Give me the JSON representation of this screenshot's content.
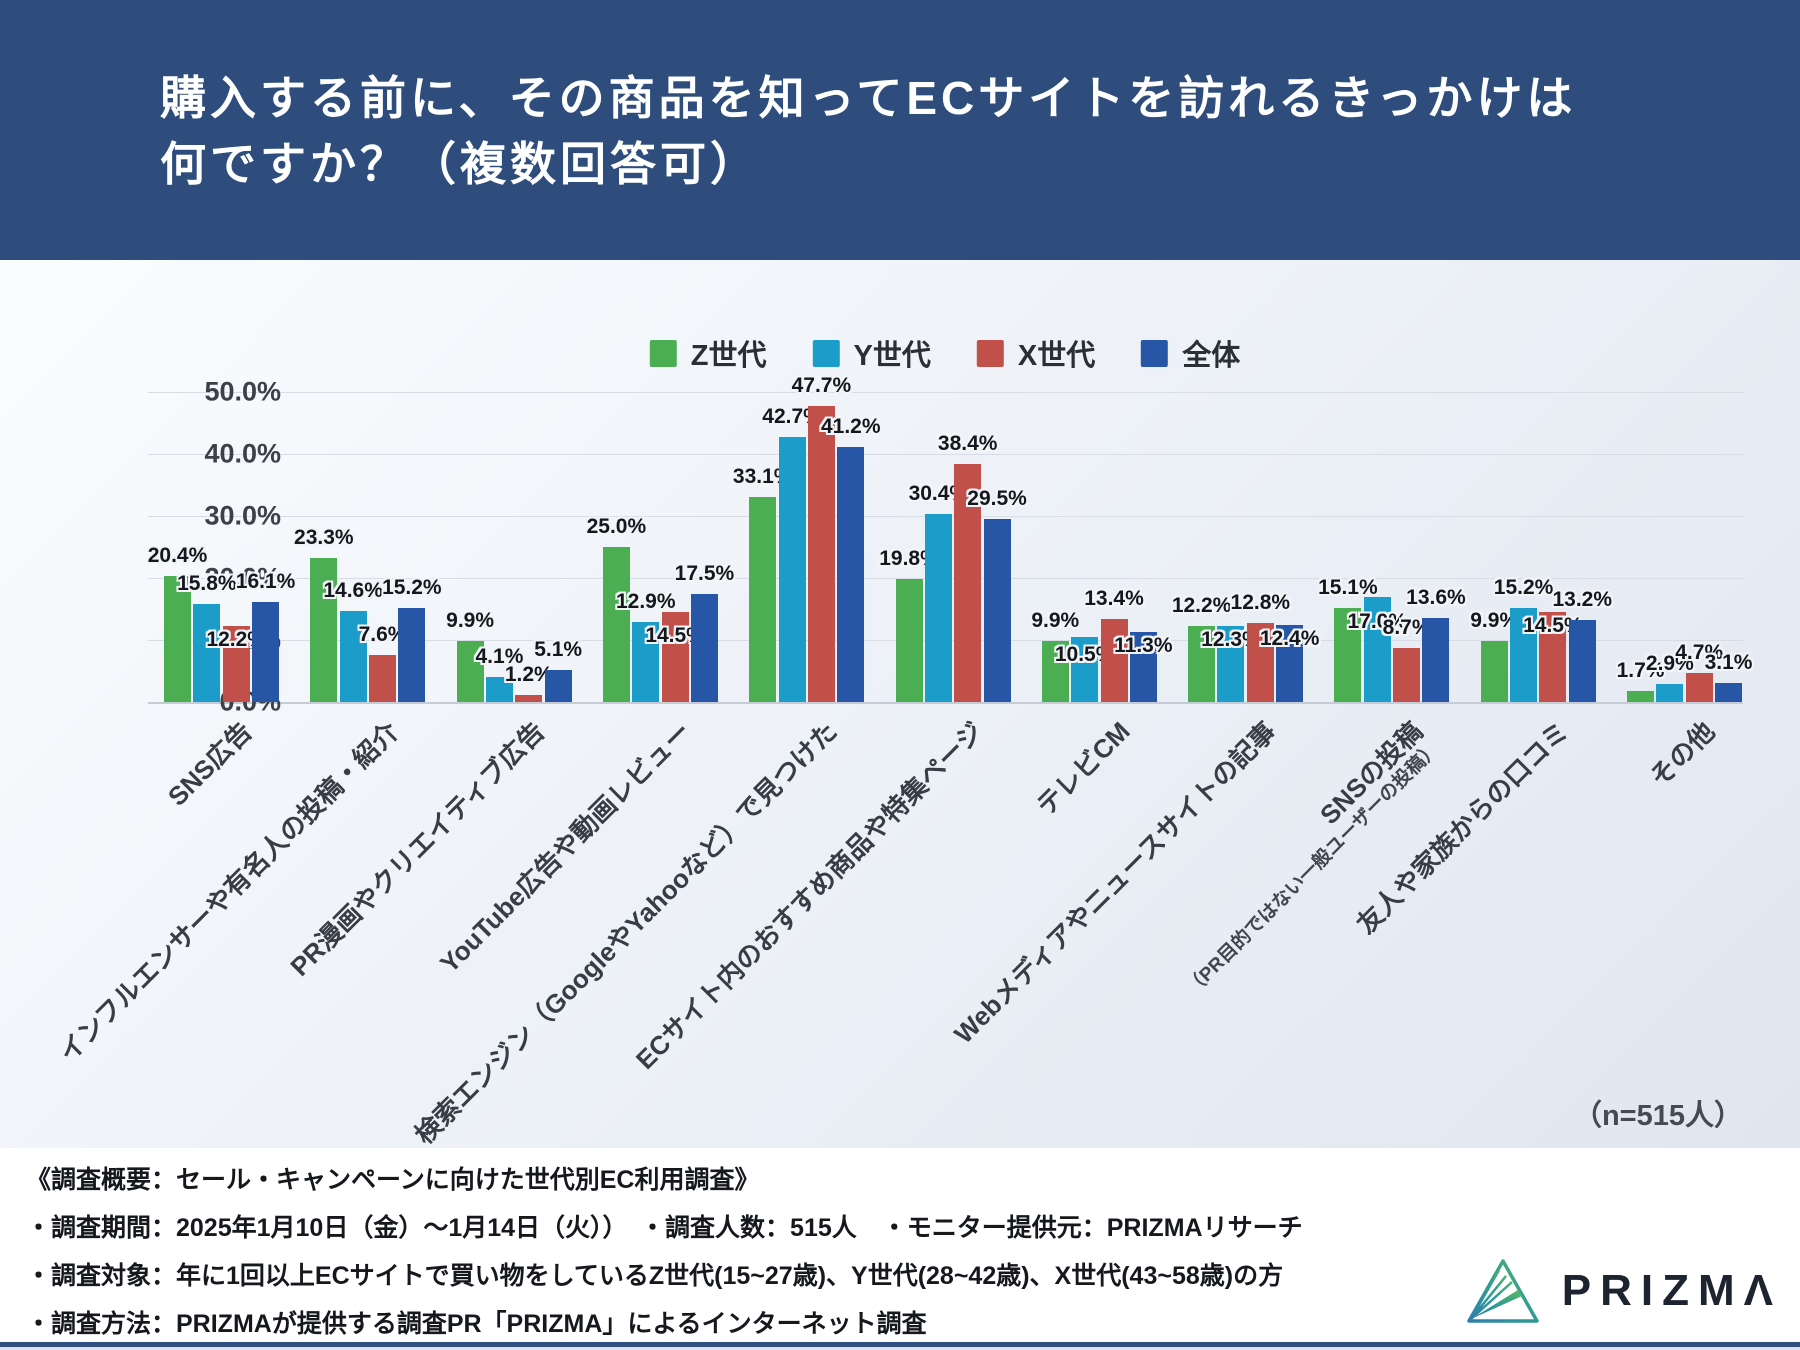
{
  "header": {
    "title_line1": "購入する前に、その商品を知ってECサイトを訪れるきっかけは",
    "title_line2": "何ですか？（複数回答可）"
  },
  "chart_data": {
    "type": "bar",
    "title": "購入する前に、その商品を知ってECサイトを訪れるきっかけは何ですか？（複数回答可）",
    "categories": [
      "SNS広告",
      "インフルエンサーや有名人の投稿・紹介",
      "PR漫画やクリエイティブ広告",
      "YouTube広告や動画レビュー",
      "検索エンジン（GoogleやYahooなど）で見つけた",
      "ECサイト内のおすすめ商品や特集ページ",
      "テレビCM",
      "Webメディアやニュースサイトの記事",
      "SNSの投稿",
      "友人や家族からの口コミ",
      "その他"
    ],
    "category_notes": {
      "8": "（PR目的ではない一般ユーザーの投稿）"
    },
    "series": [
      {
        "name": "Z世代",
        "color": "#4cae52",
        "values": [
          20.4,
          23.3,
          9.9,
          25.0,
          33.1,
          19.8,
          9.9,
          12.2,
          15.1,
          9.9,
          1.7
        ]
      },
      {
        "name": "Y世代",
        "color": "#1c9dc9",
        "values": [
          15.8,
          14.6,
          4.1,
          12.9,
          42.7,
          30.4,
          10.5,
          12.3,
          17.0,
          15.2,
          2.9
        ]
      },
      {
        "name": "X世代",
        "color": "#c1504b",
        "values": [
          12.2,
          7.6,
          1.2,
          14.5,
          47.7,
          38.4,
          13.4,
          12.8,
          8.7,
          14.5,
          4.7
        ]
      },
      {
        "name": "全体",
        "color": "#2856a6",
        "values": [
          16.1,
          15.2,
          5.1,
          17.5,
          41.2,
          29.5,
          11.3,
          12.4,
          13.6,
          13.2,
          3.1
        ]
      }
    ],
    "y_ticks": [
      "0.0%",
      "10.0%",
      "20.0%",
      "30.0%",
      "40.0%",
      "50.0%"
    ],
    "ylim": [
      0,
      50
    ],
    "grid": true,
    "legend_position": "top",
    "value_label_format": "percent",
    "sample_label": "（n=515人）"
  },
  "footer": {
    "lines": [
      "《調査概要：セール・キャンペーンに向けた世代別EC利用調査》",
      "・調査期間：2025年1月10日（金）〜1月14日（火））　・調査人数：515人　・モニター提供元：PRIZMAリサーチ",
      "・調査対象：年に1回以上ECサイトで買い物をしているZ世代(15~27歳)、Y世代(28~42歳)、X世代(43~58歳)の方",
      "・調査方法：PRIZMAが提供する調査PR「PRIZMA」によるインターネット調査"
    ]
  },
  "logo": {
    "text": "PRIZMΛ"
  }
}
